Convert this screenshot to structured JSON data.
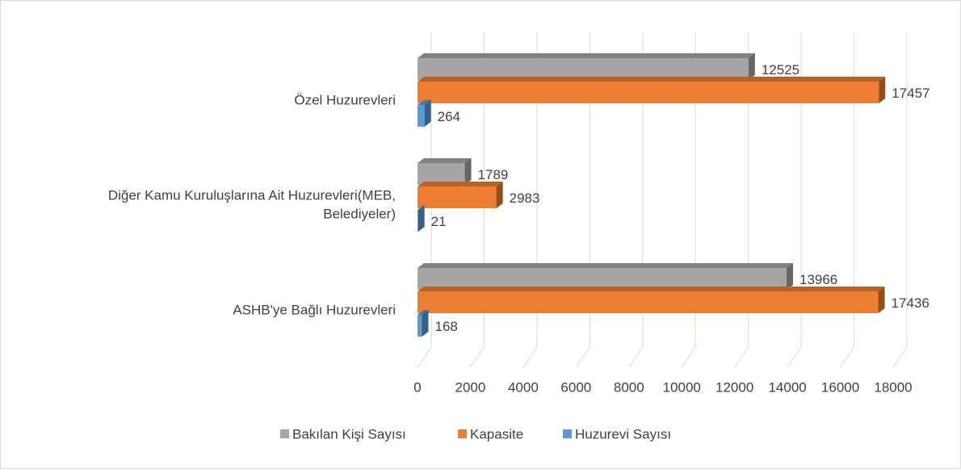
{
  "chart_data": {
    "type": "bar3d_horizontal",
    "categories": [
      "ASHB'ye Bağlı Huzurevleri",
      "Diğer Kamu Kuruluşlarına Ait Huzurevleri(MEB, Belediyeler)",
      "Özel Huzurevleri"
    ],
    "series": [
      {
        "name": "Bakılan Kişi Sayısı",
        "color": "#a5a5a5",
        "values": [
          13966,
          1789,
          12525
        ]
      },
      {
        "name": "Kapasite",
        "color": "#ed7d31",
        "values": [
          17436,
          2983,
          17457
        ]
      },
      {
        "name": "Huzurevi Sayısı",
        "color": "#5b9bd5",
        "values": [
          168,
          21,
          264
        ]
      }
    ],
    "xlim": [
      0,
      18000
    ],
    "xticks": [
      0,
      2000,
      4000,
      6000,
      8000,
      10000,
      12000,
      14000,
      16000,
      18000
    ],
    "grid": true,
    "legend": "bottom"
  }
}
